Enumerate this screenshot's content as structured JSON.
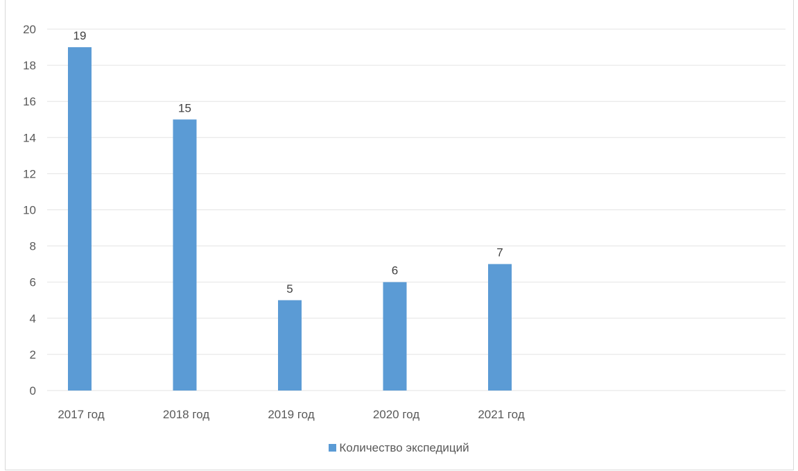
{
  "colors": {
    "bar": "#5b9bd5",
    "grid": "#e3e3e3",
    "axis_text": "#595959",
    "label_text": "#404040"
  },
  "chart_data": {
    "type": "bar",
    "title": "",
    "categories": [
      "2017 год",
      "2018 год",
      "2019 год",
      "2020 год",
      "2021 год"
    ],
    "series": [
      {
        "name": "Количество экспедиций",
        "values": [
          19,
          15,
          5,
          6,
          7
        ],
        "color": "#5b9bd5"
      }
    ],
    "data_labels": [
      "19",
      "15",
      "5",
      "6",
      "7"
    ],
    "ylim": [
      0,
      20
    ],
    "yticks": [
      0,
      2,
      4,
      6,
      8,
      10,
      12,
      14,
      16,
      18,
      20
    ],
    "grid": true,
    "legend": "bottom",
    "xlabel": "",
    "ylabel": ""
  }
}
